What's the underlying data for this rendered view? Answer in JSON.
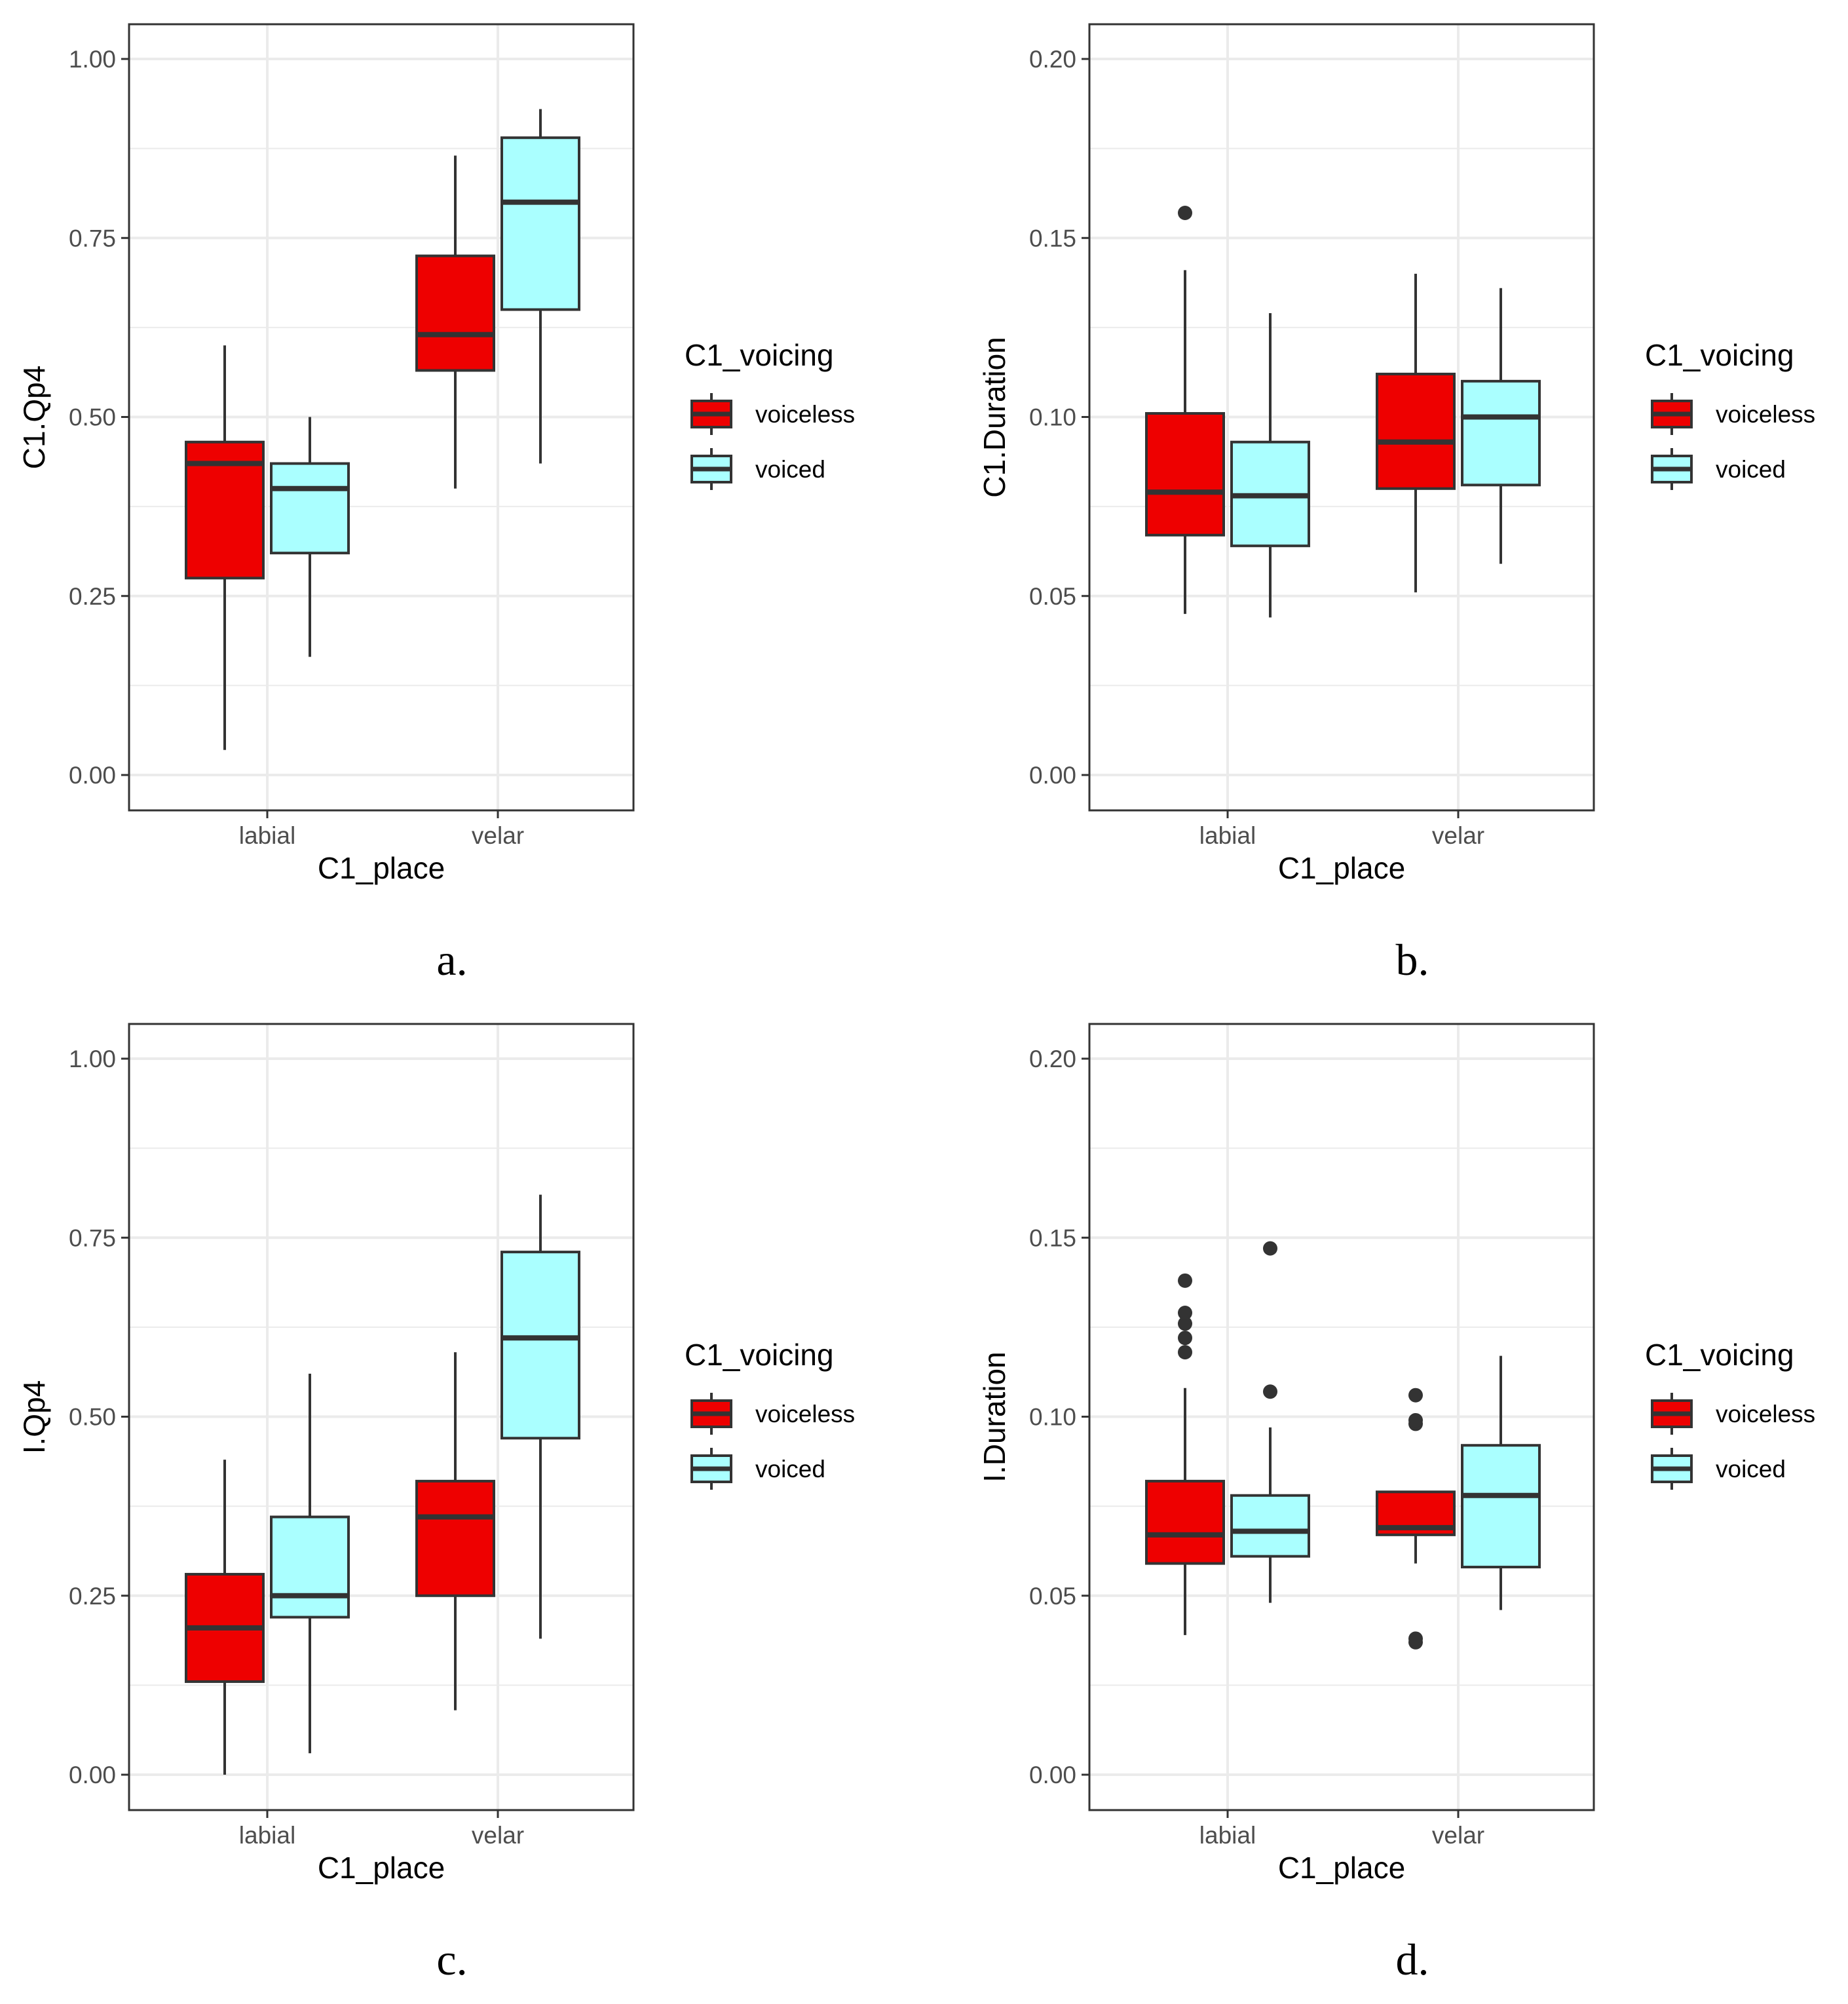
{
  "colors": {
    "voiceless": "#ee0000",
    "voiced": "#aaffff",
    "outline": "#333333",
    "grid": "#ebebeb"
  },
  "panels": [
    {
      "caption": "a.",
      "ylabel": "C1.Qp4",
      "xlabel": "C1_place",
      "yticks": [
        "0.00",
        "0.25",
        "0.50",
        "0.75",
        "1.00"
      ],
      "xticks": [
        "labial",
        "velar"
      ],
      "legend": {
        "title": "C1_voicing",
        "items": [
          "voiceless",
          "voiced"
        ]
      }
    },
    {
      "caption": "b.",
      "ylabel": "C1.Duration",
      "xlabel": "C1_place",
      "yticks": [
        "0.00",
        "0.05",
        "0.10",
        "0.15",
        "0.20"
      ],
      "xticks": [
        "labial",
        "velar"
      ],
      "legend": {
        "title": "C1_voicing",
        "items": [
          "voiceless",
          "voiced"
        ]
      }
    },
    {
      "caption": "c.",
      "ylabel": "I.Qp4",
      "xlabel": "C1_place",
      "yticks": [
        "0.00",
        "0.25",
        "0.50",
        "0.75",
        "1.00"
      ],
      "xticks": [
        "labial",
        "velar"
      ],
      "legend": {
        "title": "C1_voicing",
        "items": [
          "voiceless",
          "voiced"
        ]
      }
    },
    {
      "caption": "d.",
      "ylabel": "I.Duration",
      "xlabel": "C1_place",
      "yticks": [
        "0.00",
        "0.05",
        "0.10",
        "0.15",
        "0.20"
      ],
      "xticks": [
        "labial",
        "velar"
      ],
      "legend": {
        "title": "C1_voicing",
        "items": [
          "voiceless",
          "voiced"
        ]
      }
    }
  ],
  "chart_data": [
    {
      "type": "box",
      "title": "",
      "xlabel": "C1_place",
      "ylabel": "C1.Qp4",
      "ylim": [
        0,
        1
      ],
      "grid": true,
      "legend_position": "right",
      "categories": [
        "labial",
        "velar"
      ],
      "series": [
        {
          "name": "voiceless",
          "boxes": [
            {
              "category": "labial",
              "min": 0.035,
              "q1": 0.275,
              "median": 0.435,
              "q3": 0.465,
              "max": 0.6,
              "outliers": []
            },
            {
              "category": "velar",
              "min": 0.4,
              "q1": 0.565,
              "median": 0.615,
              "q3": 0.725,
              "max": 0.865,
              "outliers": []
            }
          ]
        },
        {
          "name": "voiced",
          "boxes": [
            {
              "category": "labial",
              "min": 0.165,
              "q1": 0.31,
              "median": 0.4,
              "q3": 0.435,
              "max": 0.5,
              "outliers": []
            },
            {
              "category": "velar",
              "min": 0.435,
              "q1": 0.65,
              "median": 0.8,
              "q3": 0.89,
              "max": 0.93,
              "outliers": []
            }
          ]
        }
      ]
    },
    {
      "type": "box",
      "title": "",
      "xlabel": "C1_place",
      "ylabel": "C1.Duration",
      "ylim": [
        0,
        0.2
      ],
      "grid": true,
      "legend_position": "right",
      "categories": [
        "labial",
        "velar"
      ],
      "series": [
        {
          "name": "voiceless",
          "boxes": [
            {
              "category": "labial",
              "min": 0.045,
              "q1": 0.067,
              "median": 0.079,
              "q3": 0.101,
              "max": 0.141,
              "outliers": [
                0.157
              ]
            },
            {
              "category": "velar",
              "min": 0.051,
              "q1": 0.08,
              "median": 0.093,
              "q3": 0.112,
              "max": 0.14,
              "outliers": []
            }
          ]
        },
        {
          "name": "voiced",
          "boxes": [
            {
              "category": "labial",
              "min": 0.044,
              "q1": 0.064,
              "median": 0.078,
              "q3": 0.093,
              "max": 0.129,
              "outliers": []
            },
            {
              "category": "velar",
              "min": 0.059,
              "q1": 0.081,
              "median": 0.1,
              "q3": 0.11,
              "max": 0.136,
              "outliers": []
            }
          ]
        }
      ]
    },
    {
      "type": "box",
      "title": "",
      "xlabel": "C1_place",
      "ylabel": "I.Qp4",
      "ylim": [
        0,
        1
      ],
      "grid": true,
      "legend_position": "right",
      "categories": [
        "labial",
        "velar"
      ],
      "series": [
        {
          "name": "voiceless",
          "boxes": [
            {
              "category": "labial",
              "min": 0.0,
              "q1": 0.13,
              "median": 0.205,
              "q3": 0.28,
              "max": 0.44,
              "outliers": []
            },
            {
              "category": "velar",
              "min": 0.09,
              "q1": 0.25,
              "median": 0.36,
              "q3": 0.41,
              "max": 0.59,
              "outliers": []
            }
          ]
        },
        {
          "name": "voiced",
          "boxes": [
            {
              "category": "labial",
              "min": 0.03,
              "q1": 0.22,
              "median": 0.25,
              "q3": 0.36,
              "max": 0.56,
              "outliers": []
            },
            {
              "category": "velar",
              "min": 0.19,
              "q1": 0.47,
              "median": 0.61,
              "q3": 0.73,
              "max": 0.81,
              "outliers": []
            }
          ]
        }
      ]
    },
    {
      "type": "box",
      "title": "",
      "xlabel": "C1_place",
      "ylabel": "I.Duration",
      "ylim": [
        0,
        0.2
      ],
      "grid": true,
      "legend_position": "right",
      "categories": [
        "labial",
        "velar"
      ],
      "series": [
        {
          "name": "voiceless",
          "boxes": [
            {
              "category": "labial",
              "min": 0.039,
              "q1": 0.059,
              "median": 0.067,
              "q3": 0.082,
              "max": 0.108,
              "outliers": [
                0.118,
                0.122,
                0.126,
                0.129,
                0.138
              ]
            },
            {
              "category": "velar",
              "min": 0.059,
              "q1": 0.067,
              "median": 0.069,
              "q3": 0.079,
              "max": 0.079,
              "outliers": [
                0.037,
                0.038,
                0.098,
                0.099,
                0.106
              ]
            }
          ]
        },
        {
          "name": "voiced",
          "boxes": [
            {
              "category": "labial",
              "min": 0.048,
              "q1": 0.061,
              "median": 0.068,
              "q3": 0.078,
              "max": 0.097,
              "outliers": [
                0.107,
                0.147
              ]
            },
            {
              "category": "velar",
              "min": 0.046,
              "q1": 0.058,
              "median": 0.078,
              "q3": 0.092,
              "max": 0.117,
              "outliers": []
            }
          ]
        }
      ]
    }
  ]
}
